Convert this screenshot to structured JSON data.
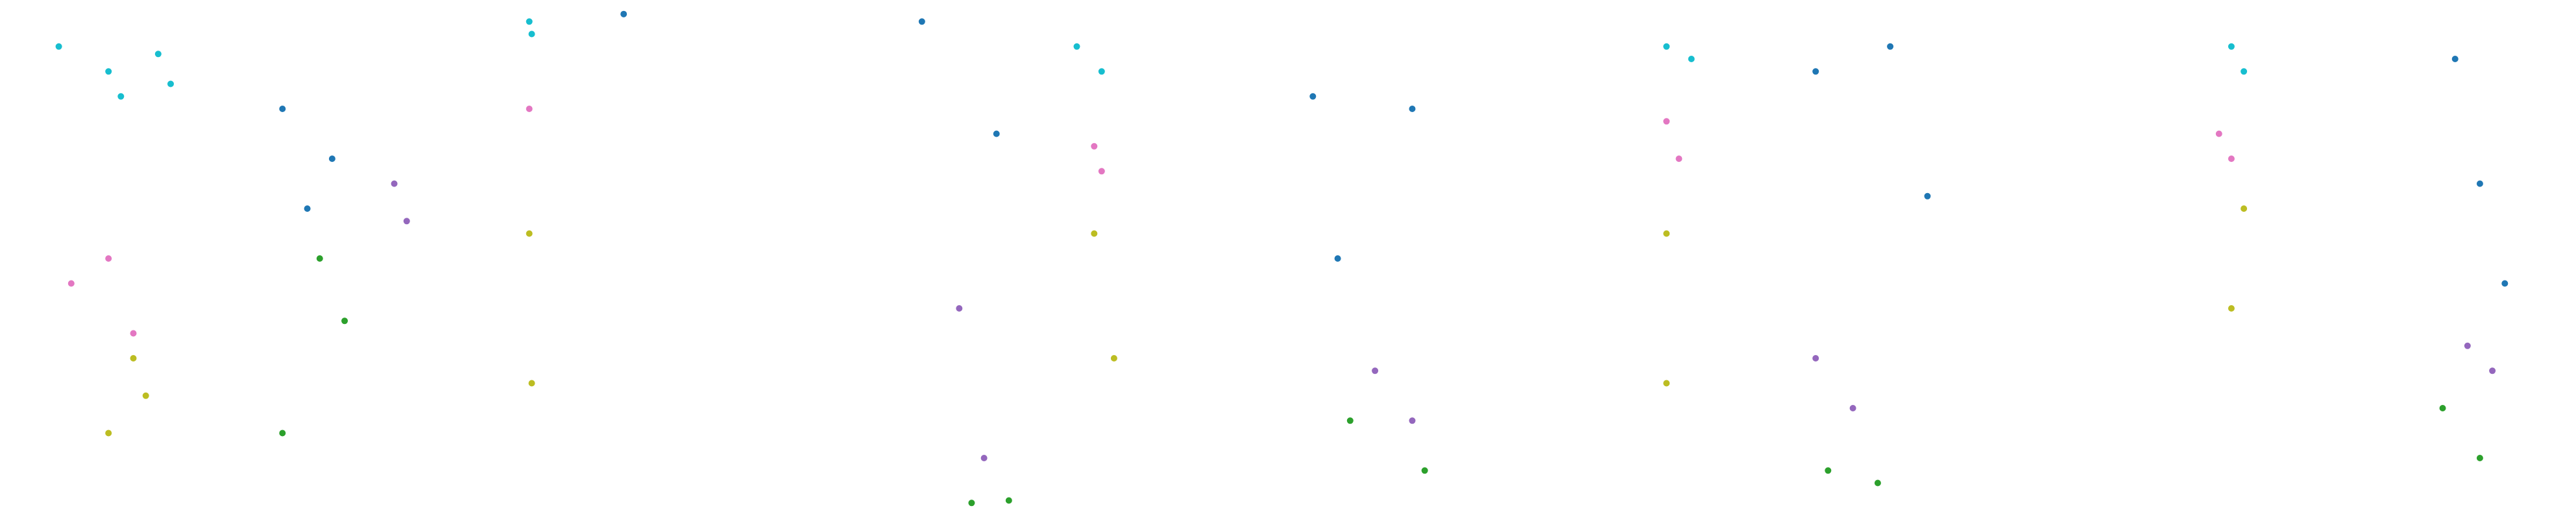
{
  "figure": {
    "background": "#ffffff",
    "palette": {
      "cyan": "#17becf",
      "pink": "#e377c2",
      "olive": "#bcbd22",
      "blue": "#1f77b4",
      "green": "#2ca02c",
      "purple": "#9467bd"
    }
  },
  "chart_data": [
    {
      "type": "scatter",
      "title": "",
      "xlabel": "",
      "ylabel": "",
      "axes": "hidden",
      "grid": false,
      "legend": "none",
      "series": [
        {
          "color": "cyan",
          "x": [
            -0.6,
            -0.4,
            -0.8,
            -0.35,
            -0.55
          ],
          "y": [
            0.75,
            0.82,
            0.85,
            0.7,
            0.65
          ]
        },
        {
          "color": "pink",
          "x": [
            -0.75,
            -0.6,
            -0.5
          ],
          "y": [
            -0.1,
            0.0,
            -0.3
          ]
        },
        {
          "color": "olive",
          "x": [
            -0.5,
            -0.45,
            -0.6
          ],
          "y": [
            -0.4,
            -0.55,
            -0.7
          ]
        },
        {
          "color": "blue",
          "x": [
            0.1,
            0.3,
            0.2
          ],
          "y": [
            0.6,
            0.4,
            0.2
          ]
        },
        {
          "color": "green",
          "x": [
            0.25,
            0.35,
            0.1
          ],
          "y": [
            0.0,
            -0.25,
            -0.7
          ]
        },
        {
          "color": "purple",
          "x": [
            0.55,
            0.6
          ],
          "y": [
            0.3,
            0.15
          ]
        }
      ]
    },
    {
      "type": "scatter",
      "title": "",
      "xlabel": "",
      "ylabel": "",
      "axes": "hidden",
      "grid": false,
      "legend": "none",
      "series": [
        {
          "color": "cyan",
          "x": [
            -0.98,
            -0.97
          ],
          "y": [
            0.95,
            0.9
          ]
        },
        {
          "color": "pink",
          "x": [
            -0.98
          ],
          "y": [
            0.6
          ]
        },
        {
          "color": "olive",
          "x": [
            -0.98,
            -0.97
          ],
          "y": [
            0.1,
            -0.5
          ]
        },
        {
          "color": "blue",
          "x": [
            -0.6,
            0.6,
            0.9
          ],
          "y": [
            0.98,
            0.95,
            0.5
          ]
        },
        {
          "color": "purple",
          "x": [
            0.75,
            0.85
          ],
          "y": [
            -0.2,
            -0.8
          ]
        },
        {
          "color": "green",
          "x": [
            0.8,
            0.95
          ],
          "y": [
            -0.98,
            -0.97
          ]
        }
      ]
    },
    {
      "type": "scatter",
      "title": "",
      "xlabel": "",
      "ylabel": "",
      "axes": "hidden",
      "grid": false,
      "legend": "none",
      "series": [
        {
          "color": "cyan",
          "x": [
            -0.85,
            -0.75
          ],
          "y": [
            0.85,
            0.75
          ]
        },
        {
          "color": "pink",
          "x": [
            -0.78,
            -0.75
          ],
          "y": [
            0.45,
            0.35
          ]
        },
        {
          "color": "olive",
          "x": [
            -0.78,
            -0.7
          ],
          "y": [
            0.1,
            -0.4
          ]
        },
        {
          "color": "blue",
          "x": [
            0.1,
            0.5,
            0.2
          ],
          "y": [
            0.65,
            0.6,
            0.0
          ]
        },
        {
          "color": "purple",
          "x": [
            0.35,
            0.5
          ],
          "y": [
            -0.45,
            -0.65
          ]
        },
        {
          "color": "green",
          "x": [
            0.25,
            0.55
          ],
          "y": [
            -0.65,
            -0.85
          ]
        }
      ]
    },
    {
      "type": "scatter",
      "title": "",
      "xlabel": "",
      "ylabel": "",
      "axes": "hidden",
      "grid": false,
      "legend": "none",
      "series": [
        {
          "color": "cyan",
          "x": [
            -0.55,
            -0.45
          ],
          "y": [
            0.85,
            0.8
          ]
        },
        {
          "color": "pink",
          "x": [
            -0.55,
            -0.5
          ],
          "y": [
            0.55,
            0.4
          ]
        },
        {
          "color": "olive",
          "x": [
            -0.55,
            -0.55
          ],
          "y": [
            0.1,
            -0.5
          ]
        },
        {
          "color": "blue",
          "x": [
            0.05,
            0.35,
            0.5
          ],
          "y": [
            0.75,
            0.85,
            0.25
          ]
        },
        {
          "color": "purple",
          "x": [
            0.05,
            0.2
          ],
          "y": [
            -0.4,
            -0.6
          ]
        },
        {
          "color": "green",
          "x": [
            0.1,
            0.3
          ],
          "y": [
            -0.85,
            -0.9
          ]
        }
      ]
    },
    {
      "type": "scatter",
      "title": "",
      "xlabel": "",
      "ylabel": "",
      "axes": "hidden",
      "grid": false,
      "legend": "none",
      "series": [
        {
          "color": "cyan",
          "x": [
            -0.35,
            -0.3
          ],
          "y": [
            0.85,
            0.75
          ]
        },
        {
          "color": "pink",
          "x": [
            -0.4,
            -0.35
          ],
          "y": [
            0.5,
            0.4
          ]
        },
        {
          "color": "olive",
          "x": [
            -0.3,
            -0.35
          ],
          "y": [
            0.2,
            -0.2
          ]
        },
        {
          "color": "blue",
          "x": [
            0.55,
            0.65,
            0.75
          ],
          "y": [
            0.8,
            0.3,
            -0.1
          ]
        },
        {
          "color": "purple",
          "x": [
            0.6,
            0.7
          ],
          "y": [
            -0.35,
            -0.45
          ]
        },
        {
          "color": "green",
          "x": [
            0.5,
            0.65
          ],
          "y": [
            -0.6,
            -0.8
          ]
        }
      ]
    }
  ]
}
